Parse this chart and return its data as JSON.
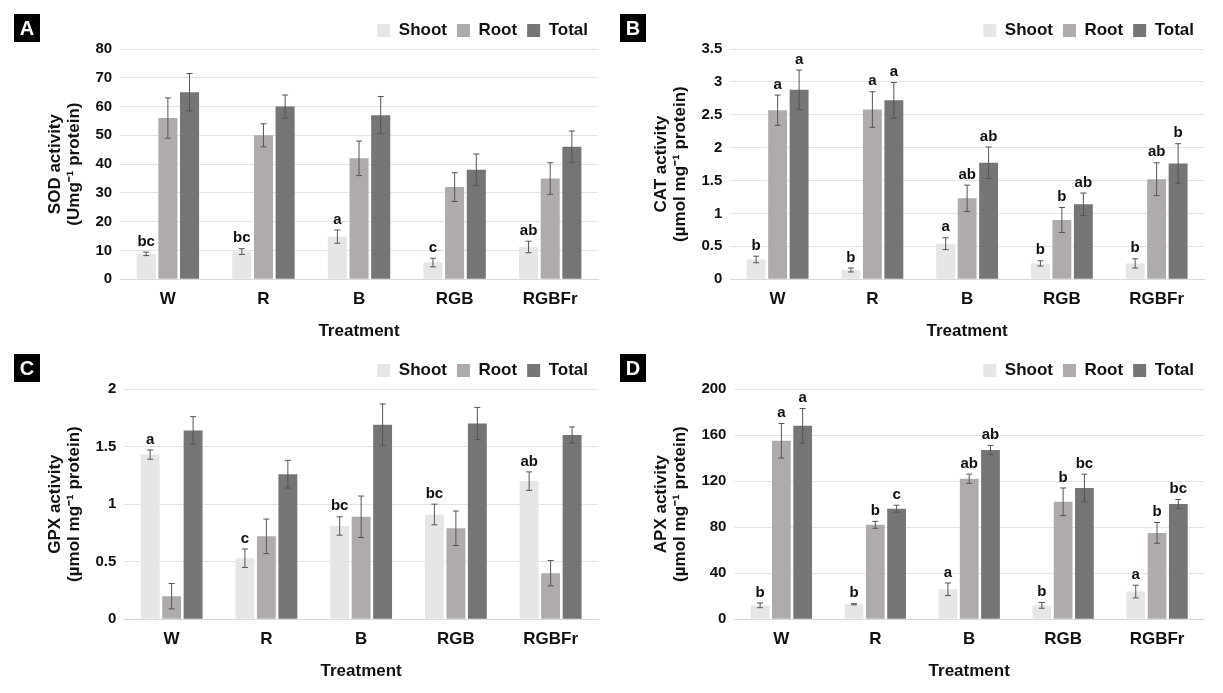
{
  "chart_data": [
    {
      "type": "bar",
      "title": "A",
      "xlabel": "Treatment",
      "ylabel": "SOD activity\n(Umg⁻¹ protein)",
      "categories": [
        "W",
        "R",
        "B",
        "RGB",
        "RGBFr"
      ],
      "ylim": [
        0,
        80
      ],
      "yticks": [
        0,
        10,
        20,
        30,
        40,
        50,
        60,
        70,
        80
      ],
      "grid": "y",
      "legend": "top right",
      "series": [
        {
          "name": "Shoot",
          "color": "#e6e6e6",
          "values": [
            8.8,
            9.6,
            14.8,
            5.8,
            11.2
          ],
          "errors": [
            0.6,
            1,
            2.3,
            1.5,
            2
          ],
          "value_labels": [
            "bc",
            "bc",
            "a",
            "c",
            "ab"
          ]
        },
        {
          "name": "Root",
          "color": "#b0abab",
          "values": [
            56,
            50,
            42,
            32,
            35
          ],
          "errors": [
            7,
            4,
            6,
            5,
            5.5
          ]
        },
        {
          "name": "Total",
          "color": "#757575",
          "values": [
            65,
            60,
            57,
            38,
            46
          ],
          "errors": [
            6.5,
            4,
            6.5,
            5.5,
            5.5
          ]
        }
      ]
    },
    {
      "type": "bar",
      "title": "B",
      "xlabel": "Treatment",
      "ylabel": "CAT activity\n(µmol mg⁻¹ protein)",
      "categories": [
        "W",
        "R",
        "B",
        "RGB",
        "RGBFr"
      ],
      "ylim": [
        0,
        3.5
      ],
      "yticks": [
        0,
        0.5,
        1,
        1.5,
        2,
        2.5,
        3,
        3.5
      ],
      "grid": "y",
      "legend": "top right",
      "series": [
        {
          "name": "Shoot",
          "color": "#e6e6e6",
          "values": [
            0.3,
            0.14,
            0.54,
            0.24,
            0.24
          ],
          "errors": [
            0.05,
            0.03,
            0.09,
            0.04,
            0.07
          ],
          "value_labels": [
            "b",
            "b",
            "a",
            "b",
            "b"
          ]
        },
        {
          "name": "Root",
          "color": "#b0abab",
          "values": [
            2.57,
            2.58,
            1.23,
            0.9,
            1.52
          ],
          "errors": [
            0.23,
            0.27,
            0.2,
            0.19,
            0.25
          ],
          "value_labels": [
            "a",
            "a",
            "ab",
            "b",
            "ab"
          ]
        },
        {
          "name": "Total",
          "color": "#757575",
          "values": [
            2.88,
            2.72,
            1.77,
            1.14,
            1.76
          ],
          "errors": [
            0.3,
            0.27,
            0.24,
            0.17,
            0.3
          ],
          "value_labels": [
            "a",
            "a",
            "ab",
            "ab",
            "b"
          ]
        }
      ]
    },
    {
      "type": "bar",
      "title": "C",
      "xlabel": "Treatment",
      "ylabel": "GPX activity\n(µmol mg⁻¹ protein)",
      "categories": [
        "W",
        "R",
        "B",
        "RGB",
        "RGBFr"
      ],
      "ylim": [
        0,
        2
      ],
      "yticks": [
        0,
        0.5,
        1,
        1.5,
        2
      ],
      "grid": "y",
      "legend": "top right",
      "series": [
        {
          "name": "Shoot",
          "color": "#e6e6e6",
          "values": [
            1.43,
            0.53,
            0.81,
            0.91,
            1.2
          ],
          "errors": [
            0.04,
            0.08,
            0.08,
            0.09,
            0.08
          ],
          "value_labels": [
            "a",
            "c",
            "bc",
            "bc",
            "ab"
          ]
        },
        {
          "name": "Root",
          "color": "#b0abab",
          "values": [
            0.2,
            0.72,
            0.89,
            0.79,
            0.4
          ],
          "errors": [
            0.11,
            0.15,
            0.18,
            0.15,
            0.11
          ]
        },
        {
          "name": "Total",
          "color": "#757575",
          "values": [
            1.64,
            1.26,
            1.69,
            1.7,
            1.6
          ],
          "errors": [
            0.12,
            0.12,
            0.18,
            0.14,
            0.07
          ]
        }
      ]
    },
    {
      "type": "bar",
      "title": "D",
      "xlabel": "Treatment",
      "ylabel": "APX activity\n(µmol mg⁻¹ protein)",
      "categories": [
        "W",
        "R",
        "B",
        "RGB",
        "RGBFr"
      ],
      "ylim": [
        0,
        200
      ],
      "yticks": [
        0,
        40,
        80,
        120,
        160,
        200
      ],
      "grid": "y",
      "legend": "top right",
      "series": [
        {
          "name": "Shoot",
          "color": "#e6e6e6",
          "values": [
            12,
            13,
            26,
            12,
            24
          ],
          "errors": [
            2,
            0.5,
            5.5,
            2.5,
            5.5
          ],
          "value_labels": [
            "b",
            "b",
            "a",
            "b",
            "a"
          ]
        },
        {
          "name": "Root",
          "color": "#b0abab",
          "values": [
            155,
            82,
            122,
            102,
            75
          ],
          "errors": [
            15,
            3,
            4,
            12,
            9
          ],
          "value_labels": [
            "a",
            "b",
            "ab",
            "b",
            "b"
          ]
        },
        {
          "name": "Total",
          "color": "#757575",
          "values": [
            168,
            96,
            147,
            114,
            100
          ],
          "errors": [
            15,
            3,
            4,
            12,
            4
          ],
          "value_labels": [
            "a",
            "c",
            "ab",
            "bc",
            "bc"
          ]
        }
      ]
    }
  ]
}
